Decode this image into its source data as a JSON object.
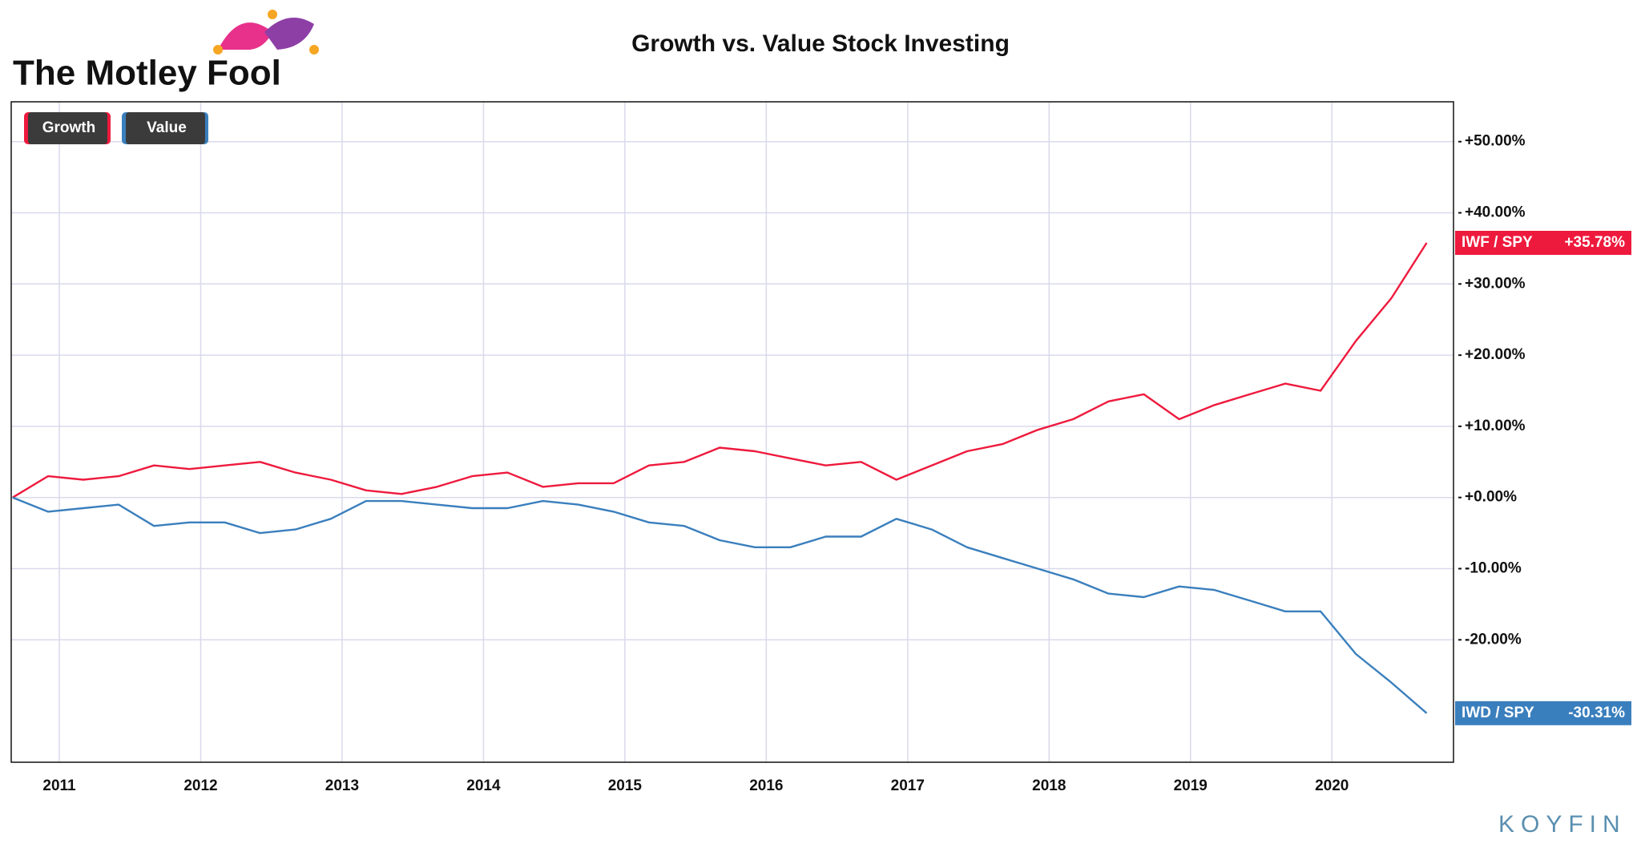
{
  "logo": "The Motley Fool",
  "watermark": "KOYFIN",
  "chart_data": {
    "type": "line",
    "title": "Growth vs. Value Stock Investing",
    "x": [
      2010.67,
      2010.92,
      2011.17,
      2011.42,
      2011.67,
      2011.92,
      2012.17,
      2012.42,
      2012.67,
      2012.92,
      2013.17,
      2013.42,
      2013.67,
      2013.92,
      2014.17,
      2014.42,
      2014.67,
      2014.92,
      2015.17,
      2015.42,
      2015.67,
      2015.92,
      2016.17,
      2016.42,
      2016.67,
      2016.92,
      2017.17,
      2017.42,
      2017.67,
      2017.92,
      2018.17,
      2018.42,
      2018.67,
      2018.92,
      2019.17,
      2019.42,
      2019.67,
      2019.92,
      2020.17,
      2020.42,
      2020.67
    ],
    "series": [
      {
        "name": "Growth",
        "ticker": "IWF / SPY",
        "last_label": "+35.78%",
        "color": "#ee1a3d",
        "values": [
          0,
          3,
          2.5,
          3,
          4.5,
          4,
          4.5,
          5,
          3.5,
          2.5,
          1,
          0.5,
          1.5,
          3,
          3.5,
          1.5,
          2,
          2,
          4.5,
          5,
          7,
          6.5,
          5.5,
          4.5,
          5,
          2.5,
          4.5,
          6.5,
          7.5,
          9.5,
          11,
          13.5,
          14.5,
          11,
          13,
          14.5,
          16,
          15,
          22,
          28,
          35.78
        ]
      },
      {
        "name": "Value",
        "ticker": "IWD / SPY",
        "last_label": "-30.31%",
        "color": "#3a7fbd",
        "values": [
          0,
          -2,
          -1.5,
          -1,
          -4,
          -3.5,
          -3.5,
          -5,
          -4.5,
          -3,
          -0.5,
          -0.5,
          -1,
          -1.5,
          -1.5,
          -0.5,
          -1,
          -2,
          -3.5,
          -4,
          -6,
          -7,
          -7,
          -5.5,
          -5.5,
          -3,
          -4.5,
          -7,
          -8.5,
          -10,
          -11.5,
          -13.5,
          -14,
          -12.5,
          -13,
          -14.5,
          -16,
          -16,
          -22,
          -26,
          -30.31
        ]
      }
    ],
    "xlim": [
      2010.66,
      2020.86
    ],
    "xticks": [
      2011,
      2012,
      2013,
      2014,
      2015,
      2016,
      2017,
      2018,
      2019,
      2020
    ],
    "ylim": [
      -37.2,
      55.6
    ],
    "yticks": [
      {
        "value": 50,
        "label": "+50.00%"
      },
      {
        "value": 40,
        "label": "+40.00%"
      },
      {
        "value": 30,
        "label": "+30.00%"
      },
      {
        "value": 20,
        "label": "+20.00%"
      },
      {
        "value": 10,
        "label": "+10.00%"
      },
      {
        "value": 0,
        "label": "+0.00%"
      },
      {
        "value": -10,
        "label": "-10.00%"
      },
      {
        "value": -20,
        "label": "-20.00%"
      }
    ],
    "grid": true,
    "legend": "top-left"
  }
}
